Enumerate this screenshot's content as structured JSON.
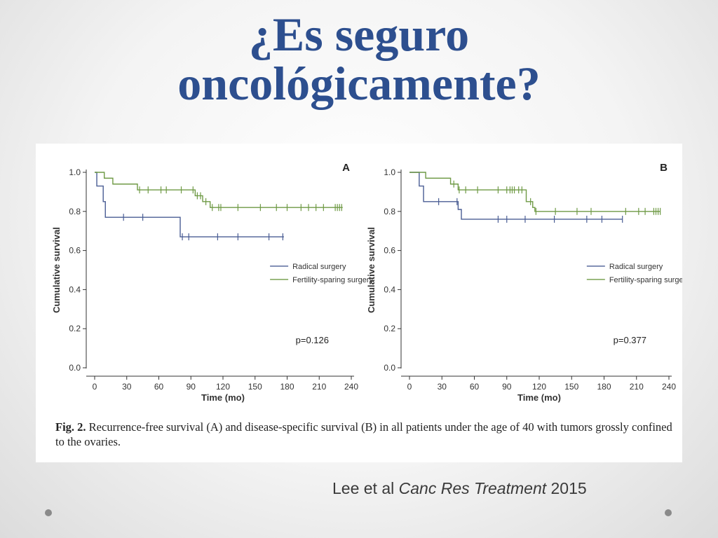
{
  "slide": {
    "title_line1": "¿Es seguro",
    "title_line2": "oncológicamente?",
    "citation_prefix": "Lee et al ",
    "citation_journal": "Canc Res Treatment",
    "citation_year": " 2015"
  },
  "figure": {
    "caption_label": "Fig. 2.",
    "caption_text": " Recurrence-free survival (A) and disease-specific survival (B) in all patients under the age of 40 with tumors grossly confined to the ovaries."
  },
  "colors": {
    "radical": "#4a5d94",
    "fertility": "#6f9a45",
    "title": "#2d4f8f"
  },
  "chart_data": [
    {
      "type": "line",
      "panel_label": "A",
      "xlabel": "Time (mo)",
      "ylabel": "Cumulative survival",
      "xlim": [
        0,
        240
      ],
      "ylim": [
        0,
        1.0
      ],
      "xticks": [
        0,
        30,
        60,
        90,
        120,
        150,
        180,
        210,
        240
      ],
      "yticks": [
        0.0,
        0.2,
        0.4,
        0.6,
        0.8,
        1.0
      ],
      "annotation": "p=0.126",
      "legend_position": "right-middle",
      "series": [
        {
          "name": "Radical surgery",
          "color": "#4a5d94",
          "steps": [
            [
              0,
              1.0
            ],
            [
              2,
              0.93
            ],
            [
              8,
              0.85
            ],
            [
              10,
              0.77
            ],
            [
              80,
              0.67
            ],
            [
              177,
              0.67
            ]
          ],
          "censored": [
            [
              27,
              0.77
            ],
            [
              45,
              0.77
            ],
            [
              82,
              0.67
            ],
            [
              88,
              0.67
            ],
            [
              115,
              0.67
            ],
            [
              134,
              0.67
            ],
            [
              163,
              0.67
            ],
            [
              176,
              0.67
            ]
          ]
        },
        {
          "name": "Fertility-sparing surgery",
          "color": "#6f9a45",
          "steps": [
            [
              0,
              1.0
            ],
            [
              9,
              0.97
            ],
            [
              17,
              0.94
            ],
            [
              40,
              0.91
            ],
            [
              94,
              0.88
            ],
            [
              101,
              0.85
            ],
            [
              108,
              0.82
            ],
            [
              232,
              0.82
            ]
          ],
          "censored": [
            [
              42,
              0.91
            ],
            [
              50,
              0.91
            ],
            [
              62,
              0.91
            ],
            [
              67,
              0.91
            ],
            [
              81,
              0.91
            ],
            [
              92,
              0.91
            ],
            [
              96,
              0.88
            ],
            [
              99,
              0.88
            ],
            [
              104,
              0.85
            ],
            [
              110,
              0.82
            ],
            [
              116,
              0.82
            ],
            [
              118,
              0.82
            ],
            [
              134,
              0.82
            ],
            [
              155,
              0.82
            ],
            [
              170,
              0.82
            ],
            [
              180,
              0.82
            ],
            [
              193,
              0.82
            ],
            [
              200,
              0.82
            ],
            [
              207,
              0.82
            ],
            [
              214,
              0.82
            ],
            [
              225,
              0.82
            ],
            [
              227,
              0.82
            ],
            [
              229,
              0.82
            ],
            [
              231,
              0.82
            ]
          ]
        }
      ]
    },
    {
      "type": "line",
      "panel_label": "B",
      "xlabel": "Time (mo)",
      "ylabel": "Cumulative survival",
      "xlim": [
        0,
        240
      ],
      "ylim": [
        0,
        1.0
      ],
      "xticks": [
        0,
        30,
        60,
        90,
        120,
        150,
        180,
        210,
        240
      ],
      "yticks": [
        0.0,
        0.2,
        0.4,
        0.6,
        0.8,
        1.0
      ],
      "annotation": "p=0.377",
      "legend_position": "right-middle",
      "series": [
        {
          "name": "Radical surgery",
          "color": "#4a5d94",
          "steps": [
            [
              0,
              1.0
            ],
            [
              9,
              0.93
            ],
            [
              13,
              0.85
            ],
            [
              45,
              0.81
            ],
            [
              48,
              0.76
            ],
            [
              197,
              0.76
            ]
          ],
          "censored": [
            [
              27,
              0.85
            ],
            [
              44,
              0.85
            ],
            [
              82,
              0.76
            ],
            [
              90,
              0.76
            ],
            [
              107,
              0.76
            ],
            [
              134,
              0.76
            ],
            [
              164,
              0.76
            ],
            [
              178,
              0.76
            ],
            [
              197,
              0.76
            ]
          ]
        },
        {
          "name": "Fertility-sparing surgery",
          "color": "#6f9a45",
          "steps": [
            [
              0,
              1.0
            ],
            [
              15,
              0.97
            ],
            [
              38,
              0.94
            ],
            [
              45,
              0.91
            ],
            [
              108,
              0.85
            ],
            [
              114,
              0.82
            ],
            [
              116,
              0.8
            ],
            [
              232,
              0.8
            ]
          ],
          "censored": [
            [
              41,
              0.94
            ],
            [
              46,
              0.91
            ],
            [
              52,
              0.91
            ],
            [
              63,
              0.91
            ],
            [
              82,
              0.91
            ],
            [
              90,
              0.91
            ],
            [
              93,
              0.91
            ],
            [
              95,
              0.91
            ],
            [
              97,
              0.91
            ],
            [
              101,
              0.91
            ],
            [
              104,
              0.91
            ],
            [
              112,
              0.85
            ],
            [
              117,
              0.8
            ],
            [
              135,
              0.8
            ],
            [
              155,
              0.8
            ],
            [
              168,
              0.8
            ],
            [
              200,
              0.8
            ],
            [
              212,
              0.8
            ],
            [
              218,
              0.8
            ],
            [
              226,
              0.8
            ],
            [
              228,
              0.8
            ],
            [
              230,
              0.8
            ],
            [
              232,
              0.8
            ]
          ]
        }
      ]
    }
  ]
}
